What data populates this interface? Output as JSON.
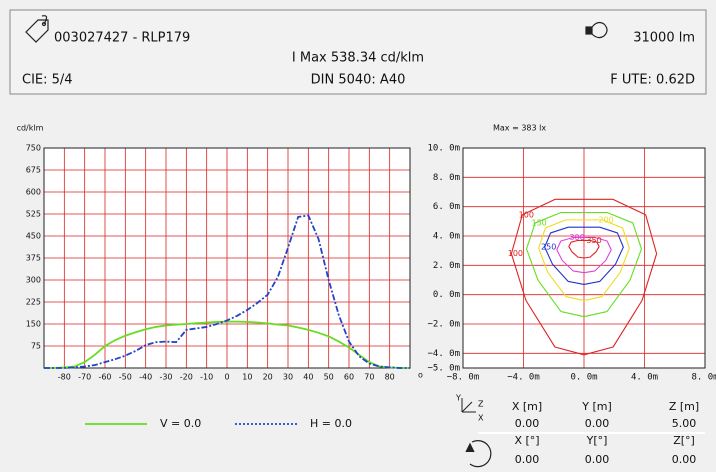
{
  "header": {
    "reference": "003027427 - RLP179",
    "flux": "31000 lm",
    "imax": "I Max 538.34 cd/klm",
    "cie": "CIE: 5/4",
    "din": "DIN 5040: A40",
    "ute": "F UTE: 0.62D"
  },
  "chart_data": [
    {
      "type": "line",
      "ylabel": "cd/klm",
      "xlabel": "o",
      "x": [
        -90,
        -85,
        -80,
        -75,
        -70,
        -65,
        -60,
        -55,
        -50,
        -45,
        -40,
        -35,
        -30,
        -25,
        -20,
        -15,
        -10,
        -5,
        0,
        5,
        10,
        15,
        20,
        25,
        30,
        35,
        40,
        45,
        50,
        55,
        60,
        65,
        70,
        75,
        80,
        85,
        90
      ],
      "series": [
        {
          "name": "V = 0.0",
          "color": "#66dd22",
          "style": "solid",
          "values": [
            0,
            0,
            2,
            5,
            20,
            45,
            75,
            95,
            110,
            122,
            132,
            140,
            145,
            148,
            150,
            153,
            155,
            157,
            158,
            158,
            157,
            155,
            152,
            148,
            145,
            138,
            130,
            120,
            108,
            90,
            70,
            45,
            20,
            5,
            2,
            0,
            0
          ]
        },
        {
          "name": "H = 0.0",
          "color": "#2244cc",
          "style": "dashdot",
          "values": [
            0,
            0,
            0,
            2,
            5,
            10,
            20,
            30,
            42,
            58,
            78,
            88,
            90,
            88,
            130,
            135,
            140,
            150,
            162,
            178,
            198,
            222,
            250,
            310,
            410,
            515,
            520,
            440,
            300,
            180,
            90,
            40,
            15,
            5,
            2,
            0,
            0
          ]
        }
      ],
      "xlim": [
        -90,
        90
      ],
      "ylim": [
        0,
        750
      ],
      "xticks": [
        -80,
        -70,
        -60,
        -50,
        -40,
        -30,
        -20,
        -10,
        0,
        10,
        20,
        30,
        40,
        50,
        60,
        70,
        80
      ],
      "yticks": [
        75,
        150,
        225,
        300,
        375,
        450,
        525,
        600,
        675,
        750
      ],
      "grid": true,
      "grid_color": "#dd2222"
    },
    {
      "type": "contour",
      "title": "Max = 383 lx",
      "xlim": [
        -8,
        8
      ],
      "ylim": [
        -5,
        10
      ],
      "xticks": [
        {
          "value": -8,
          "label": "−8. 0m"
        },
        {
          "value": -4,
          "label": "−4. 0m"
        },
        {
          "value": 0,
          "label": "0. 0m"
        },
        {
          "value": 4,
          "label": "4. 0m"
        },
        {
          "value": 8,
          "label": "8. 0m"
        }
      ],
      "yticks": [
        {
          "value": 10,
          "label": "10. 0m"
        },
        {
          "value": 8,
          "label": "8. 0m"
        },
        {
          "value": 6,
          "label": "6. 0m"
        },
        {
          "value": 4,
          "label": "4. 0m"
        },
        {
          "value": 2,
          "label": "2. 0m"
        },
        {
          "value": 0,
          "label": "0. 0m"
        },
        {
          "value": -2,
          "label": "−2. 0m"
        },
        {
          "value": -4,
          "label": "−4. 0m"
        },
        {
          "value": -5,
          "label": "−5. 0m"
        }
      ],
      "grid": true,
      "grid_color": "#dd2222",
      "series": [
        {
          "name": "100",
          "color": "#dd2222",
          "x": [
            -4.08,
            -1.92,
            1.92,
            4.08,
            4.8,
            3.84,
            1.92,
            0,
            -1.92,
            -3.84,
            -4.8
          ],
          "y": [
            5.44,
            6.5,
            6.5,
            5.44,
            2.79,
            -0.39,
            -3.57,
            -4.1,
            -3.57,
            -0.39,
            2.79
          ]
        },
        {
          "name": "150",
          "color": "#66dd22",
          "x": [
            -3.23,
            -1.52,
            1.52,
            3.23,
            3.8,
            3.04,
            1.52,
            0,
            -1.52,
            -3.04,
            -3.8
          ],
          "y": [
            4.89,
            5.6,
            5.6,
            4.89,
            3.12,
            0.99,
            -1.15,
            -1.5,
            -1.15,
            0.99,
            3.12
          ]
        },
        {
          "name": "200",
          "color": "#eedd22",
          "x": [
            -2.55,
            -1.2,
            1.2,
            2.55,
            3.0,
            2.4,
            1.2,
            0,
            -1.2,
            -2.4,
            -3.0
          ],
          "y": [
            4.55,
            5.1,
            5.1,
            4.55,
            3.18,
            1.53,
            -0.13,
            -0.4,
            -0.13,
            1.53,
            3.18
          ]
        },
        {
          "name": "250",
          "color": "#2233cc",
          "x": [
            -2.21,
            -1.04,
            1.04,
            2.21,
            2.6,
            2.08,
            1.04,
            0,
            -1.04,
            -2.08,
            -2.6
          ],
          "y": [
            4.21,
            4.6,
            4.6,
            4.21,
            3.24,
            2.07,
            0.9,
            0.7,
            0.9,
            2.07,
            3.24
          ]
        },
        {
          "name": "300",
          "color": "#dd44dd",
          "x": [
            -1.53,
            -0.72,
            0.72,
            1.53,
            1.8,
            1.44,
            0.72,
            0,
            -0.72,
            -1.44,
            -1.8
          ],
          "y": [
            3.66,
            3.9,
            3.9,
            3.66,
            3.06,
            2.34,
            1.62,
            1.5,
            1.62,
            2.34,
            3.06
          ]
        },
        {
          "name": "350",
          "color": "#dd2222",
          "x": [
            -0.85,
            -0.4,
            0.4,
            0.85,
            1.0,
            0.8,
            0.4,
            0,
            -0.4,
            -0.8,
            -1.0
          ],
          "y": [
            3.58,
            3.7,
            3.7,
            3.58,
            3.28,
            2.92,
            2.56,
            2.5,
            2.56,
            2.92,
            3.28
          ]
        }
      ]
    }
  ],
  "table": {
    "axis_labels": [
      "Y",
      "Z",
      "X"
    ],
    "position_header": [
      "X [m]",
      "Y [m]",
      "Z [m]"
    ],
    "position": [
      "0.00",
      "0.00",
      "5.00"
    ],
    "rotation_header": [
      "X [°]",
      "Y[°]",
      "Z[°]"
    ],
    "rotation": [
      "0.00",
      "0.00",
      "0.00"
    ]
  }
}
